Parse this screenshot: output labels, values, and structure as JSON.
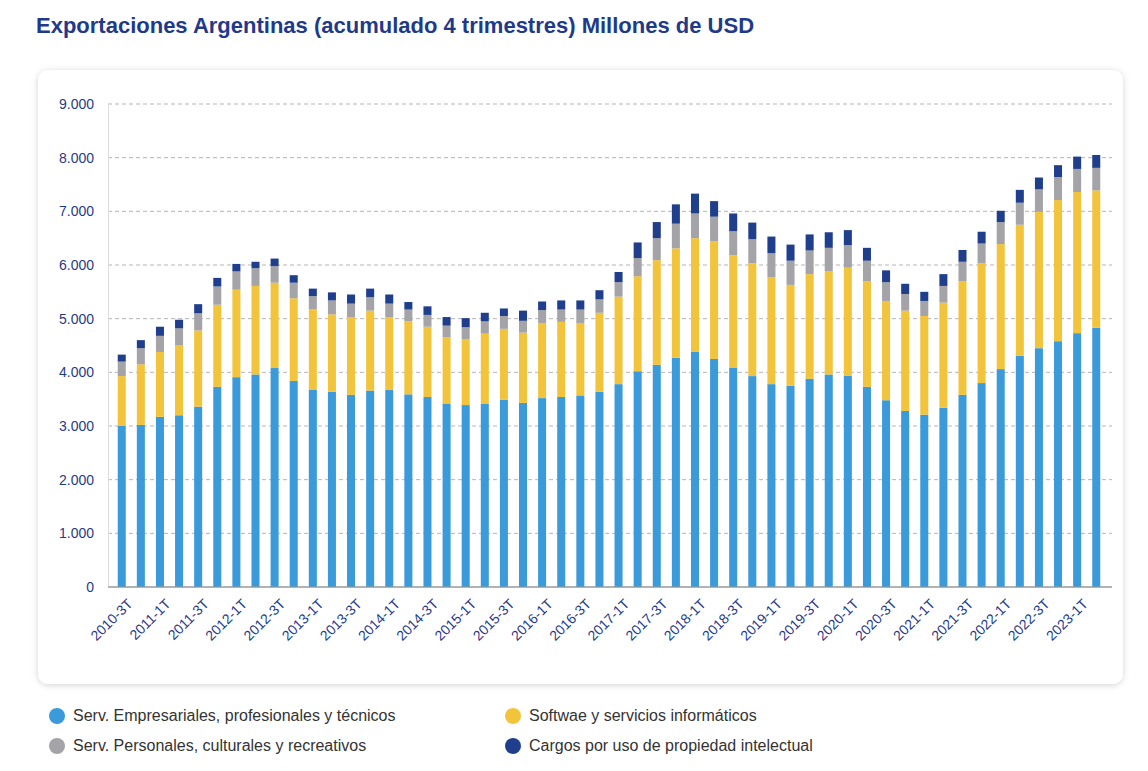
{
  "chart_data": {
    "type": "bar",
    "title": "Exportaciones Argentinas (acumulado 4 trimestres) Millones de USD",
    "stacked": true,
    "grid": true,
    "legend": "bottom",
    "categories": [
      "2010-3T",
      null,
      "2011-1T",
      null,
      "2011-3T",
      null,
      "2012-1T",
      null,
      "2012-3T",
      null,
      "2013-1T",
      null,
      "2013-3T",
      null,
      "2014-1T",
      null,
      "2014-3T",
      null,
      "2015-1T",
      null,
      "2015-3T",
      null,
      "2016-1T",
      null,
      "2016-3T",
      null,
      "2017-1T",
      null,
      "2017-3T",
      null,
      "2018-1T",
      null,
      "2018-3T",
      null,
      "2019-1T",
      null,
      "2019-3T",
      null,
      "2020-1T",
      null,
      "2020-3T",
      null,
      "2021-1T",
      null,
      "2021-3T",
      null,
      "2022-1T",
      null,
      "2022-3T",
      null,
      "2023-1T",
      null
    ],
    "ylim": [
      0,
      9000
    ],
    "yticks": [
      0,
      {
        "value": 1000,
        "label": "1.000"
      },
      {
        "value": 2000,
        "label": "2.000"
      },
      {
        "value": 3000,
        "label": "3.000"
      },
      {
        "value": 4000,
        "label": "4.000"
      },
      {
        "value": 5000,
        "label": "5.000"
      },
      {
        "value": 6000,
        "label": "6.000"
      },
      {
        "value": 7000,
        "label": "7.000"
      },
      {
        "value": 8000,
        "label": "8.000"
      },
      {
        "value": 9000,
        "label": "9.000"
      }
    ],
    "series": [
      {
        "name": "Serv. Empresariales, profesionales y técnicos",
        "color": "#3b9ad9",
        "values": [
          3000,
          3020,
          3170,
          3200,
          3360,
          3730,
          3910,
          3960,
          4080,
          3840,
          3680,
          3640,
          3580,
          3660,
          3670,
          3590,
          3540,
          3420,
          3390,
          3410,
          3490,
          3430,
          3520,
          3540,
          3570,
          3640,
          3780,
          4020,
          4140,
          4270,
          4380,
          4250,
          4090,
          3930,
          3780,
          3750,
          3880,
          3960,
          3940,
          3730,
          3480,
          3280,
          3210,
          3340,
          3580,
          3800,
          4060,
          4310,
          4450,
          4580,
          4730,
          4830
        ]
      },
      {
        "name": "Softwae y servicios informáticos",
        "color": "#f2c43c",
        "values": [
          930,
          1130,
          1210,
          1300,
          1420,
          1530,
          1630,
          1650,
          1590,
          1540,
          1500,
          1440,
          1450,
          1490,
          1360,
          1360,
          1310,
          1230,
          1230,
          1310,
          1320,
          1310,
          1400,
          1400,
          1350,
          1470,
          1630,
          1770,
          1950,
          2040,
          2120,
          2190,
          2090,
          2100,
          1990,
          1880,
          1950,
          1920,
          2010,
          1970,
          1850,
          1870,
          1840,
          1960,
          2120,
          2230,
          2330,
          2440,
          2540,
          2630,
          2630,
          2560
        ]
      },
      {
        "name": "Serv. Personales, culturales y recreativos",
        "color": "#a3a3a8",
        "values": [
          270,
          300,
          300,
          320,
          320,
          340,
          340,
          330,
          310,
          290,
          240,
          260,
          250,
          250,
          250,
          220,
          220,
          220,
          220,
          230,
          240,
          220,
          240,
          230,
          250,
          250,
          270,
          340,
          410,
          460,
          460,
          460,
          450,
          450,
          450,
          450,
          440,
          440,
          420,
          380,
          350,
          310,
          280,
          310,
          360,
          370,
          410,
          410,
          420,
          430,
          430,
          420
        ]
      },
      {
        "name": "Cargos por uso de propiedad intelectual",
        "color": "#1f3f8c",
        "values": [
          130,
          150,
          170,
          160,
          170,
          160,
          140,
          120,
          140,
          140,
          140,
          150,
          170,
          160,
          170,
          140,
          160,
          160,
          170,
          160,
          140,
          190,
          160,
          170,
          170,
          170,
          190,
          290,
          300,
          360,
          370,
          290,
          330,
          310,
          310,
          300,
          300,
          290,
          280,
          240,
          220,
          190,
          170,
          220,
          220,
          220,
          210,
          240,
          220,
          220,
          230,
          240
        ]
      }
    ]
  }
}
